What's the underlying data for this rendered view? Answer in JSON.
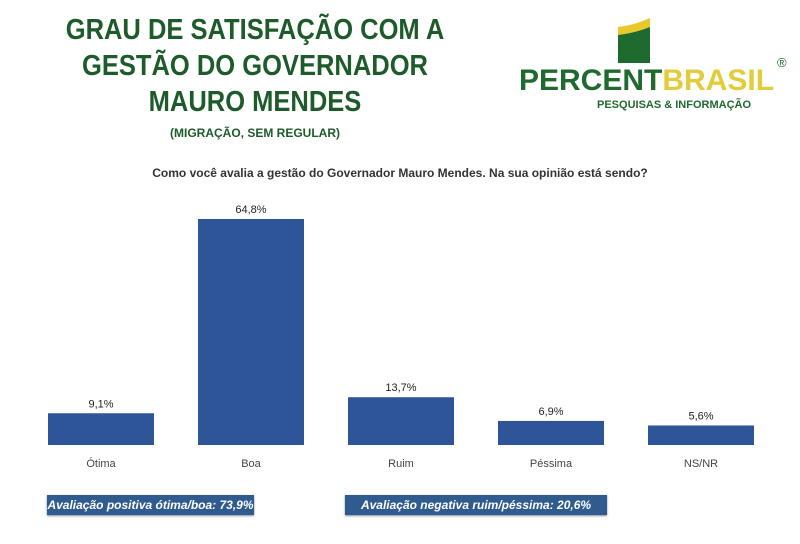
{
  "header": {
    "title_lines": [
      "GRAU DE SATISFAÇÃO COM A",
      "GESTÃO DO GOVERNADOR",
      "MAURO MENDES"
    ],
    "subtitle": "(MIGRAÇÃO, SEM REGULAR)"
  },
  "logo": {
    "text_a": "PERCENT",
    "text_b": "BRASIL",
    "registered": "®",
    "tagline": "PESQUISAS & INFORMAÇÃO"
  },
  "chart_data": {
    "type": "bar",
    "title": "Como você avalia a gestão do Governador Mauro Mendes. Na sua opinião está sendo?",
    "categories": [
      "Ótima",
      "Boa",
      "Ruim",
      "Péssima",
      "NS/NR"
    ],
    "values": [
      9.1,
      64.8,
      13.7,
      6.9,
      5.6
    ],
    "labels": [
      "9,1%",
      "64,8%",
      "13,7%",
      "6,9%",
      "5,6%"
    ],
    "ylim": [
      0,
      70
    ],
    "bar_color": "#2e5597"
  },
  "summary": {
    "positive": "Avaliação positiva ótima/boa: 73,9%",
    "negative": "Avaliação negativa ruim/péssima: 20,6%"
  }
}
